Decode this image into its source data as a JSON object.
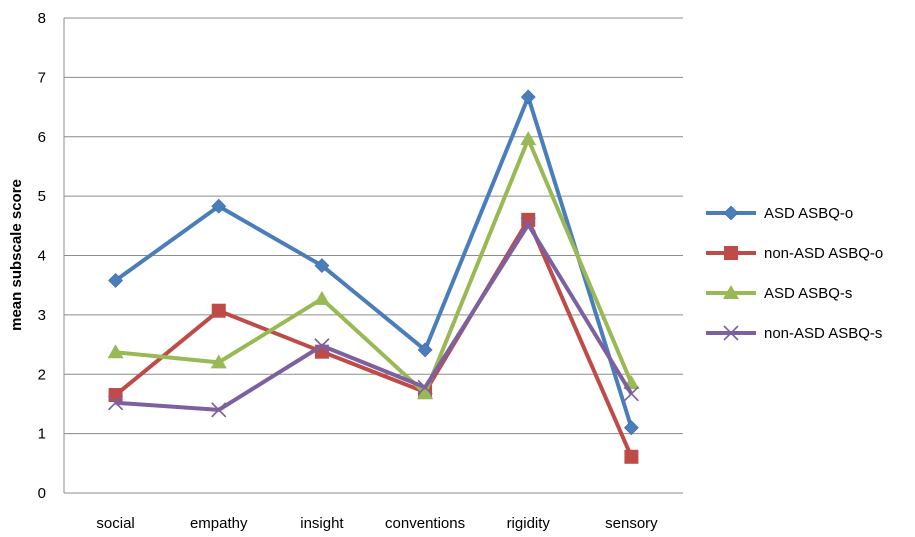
{
  "chart_data": {
    "type": "line",
    "title": "",
    "xlabel": "",
    "ylabel": "mean subscale score",
    "categories": [
      "social",
      "empathy",
      "insight",
      "conventions",
      "rigidity",
      "sensory"
    ],
    "ylim": [
      0,
      8
    ],
    "yticks": [
      "0",
      "1",
      "2",
      "3",
      "4",
      "5",
      "6",
      "7",
      "8"
    ],
    "grid": true,
    "legend_position": "right",
    "series": [
      {
        "name": "ASD ASBQ-o",
        "color": "#4a7ebb",
        "marker": "diamond",
        "values": [
          3.58,
          4.83,
          3.83,
          2.41,
          6.67,
          1.1
        ]
      },
      {
        "name": "non-ASD ASBQ-o",
        "color": "#be4b48",
        "marker": "square",
        "values": [
          1.65,
          3.07,
          2.38,
          1.7,
          4.6,
          0.61
        ]
      },
      {
        "name": "ASD ASBQ-s",
        "color": "#98b954",
        "marker": "triangle",
        "values": [
          2.37,
          2.2,
          3.27,
          1.68,
          5.96,
          1.85
        ]
      },
      {
        "name": "non-ASD ASBQ-s",
        "color": "#7d60a0",
        "marker": "x",
        "values": [
          1.52,
          1.4,
          2.48,
          1.78,
          4.52,
          1.67
        ]
      }
    ]
  }
}
